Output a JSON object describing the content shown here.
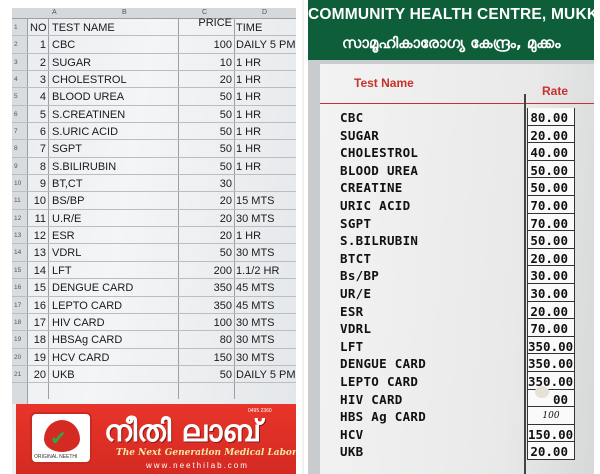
{
  "left_sheet": {
    "column_letters": [
      "A",
      "B",
      "C",
      "D"
    ],
    "headers": {
      "no": "NO",
      "name": "TEST NAME",
      "price": "PRICE",
      "time": "TIME"
    },
    "rows": [
      {
        "no": "1",
        "name": "CBC",
        "price": "100",
        "time": "DAILY 5 PM"
      },
      {
        "no": "2",
        "name": "SUGAR",
        "price": "10",
        "time": "1 HR"
      },
      {
        "no": "3",
        "name": "CHOLESTROL",
        "price": "20",
        "time": "1 HR"
      },
      {
        "no": "4",
        "name": "BLOOD UREA",
        "price": "50",
        "time": "1 HR"
      },
      {
        "no": "5",
        "name": "S.CREATINEN",
        "price": "50",
        "time": "1 HR"
      },
      {
        "no": "6",
        "name": "S.URIC ACID",
        "price": "50",
        "time": "1 HR"
      },
      {
        "no": "7",
        "name": "SGPT",
        "price": "50",
        "time": "1 HR"
      },
      {
        "no": "8",
        "name": "S.BILIRUBIN",
        "price": "50",
        "time": "1 HR"
      },
      {
        "no": "9",
        "name": "BT,CT",
        "price": "30",
        "time": ""
      },
      {
        "no": "10",
        "name": "BS/BP",
        "price": "20",
        "time": "15 MTS"
      },
      {
        "no": "11",
        "name": "U.R/E",
        "price": "20",
        "time": "30 MTS"
      },
      {
        "no": "12",
        "name": "ESR",
        "price": "20",
        "time": "1 HR"
      },
      {
        "no": "13",
        "name": "VDRL",
        "price": "50",
        "time": "30 MTS"
      },
      {
        "no": "14",
        "name": "LFT",
        "price": "200",
        "time": "1.1/2  HR"
      },
      {
        "no": "15",
        "name": "DENGUE CARD",
        "price": "350",
        "time": "45 MTS"
      },
      {
        "no": "16",
        "name": "LEPTO CARD",
        "price": "350",
        "time": "45 MTS"
      },
      {
        "no": "17",
        "name": "HIV CARD",
        "price": "100",
        "time": "30 MTS"
      },
      {
        "no": "18",
        "name": "HBSAg CARD",
        "price": "80",
        "time": "30 MTS"
      },
      {
        "no": "19",
        "name": "HCV CARD",
        "price": "150",
        "time": "30 MTS"
      },
      {
        "no": "20",
        "name": "UKB",
        "price": "50",
        "time": "DAILY 5 PM"
      }
    ],
    "row_numbers": [
      "1",
      "2",
      "3",
      "4",
      "5",
      "6",
      "7",
      "8",
      "9",
      "10",
      "11",
      "12",
      "13",
      "14",
      "15",
      "16",
      "17",
      "18",
      "19",
      "20",
      "21"
    ],
    "ad": {
      "title": "നീതി ലാബ്",
      "tagline": "The Next Generation Medical Laborat",
      "website": "www.neethilab.com",
      "logo_caption": "ORIGINAL NEETHI",
      "phone": "0495 2360",
      "brand_color": "#d42a22"
    }
  },
  "right_board": {
    "title": "COMMUNITY HEALTH CENTRE, MUKKA",
    "subtitle": "സാമൂഹികാരോഗ്യ കേന്ദ്രം, മുക്കം",
    "header_color": "#0d5e39",
    "col_name": "Test Name",
    "col_rate": "Rate",
    "rows": [
      {
        "name": "CBC",
        "rate": "80.00"
      },
      {
        "name": "SUGAR",
        "rate": "20.00"
      },
      {
        "name": "CHOLESTROL",
        "rate": "40.00"
      },
      {
        "name": "BLOOD UREA",
        "rate": "50.00"
      },
      {
        "name": "CREATINE",
        "rate": "50.00"
      },
      {
        "name": "URIC ACID",
        "rate": "70.00"
      },
      {
        "name": "SGPT",
        "rate": "70.00"
      },
      {
        "name": "S.BILRUBIN",
        "rate": "50.00"
      },
      {
        "name": "BTCT",
        "rate": "20.00"
      },
      {
        "name": "Bs/BP",
        "rate": "30.00"
      },
      {
        "name": "UR/E",
        "rate": "30.00"
      },
      {
        "name": "ESR",
        "rate": "20.00"
      },
      {
        "name": "VDRL",
        "rate": "70.00"
      },
      {
        "name": "LFT",
        "rate": "350.00"
      },
      {
        "name": "DENGUE CARD",
        "rate": "350.00"
      },
      {
        "name": "LEPTO CARD",
        "rate": "350.00"
      },
      {
        "name": "HIV CARD",
        "rate": "00"
      },
      {
        "name": "HBS Ag CARD",
        "rate": "100"
      },
      {
        "name": "HCV",
        "rate": "150.00"
      },
      {
        "name": "UKB",
        "rate": "20.00"
      }
    ]
  }
}
